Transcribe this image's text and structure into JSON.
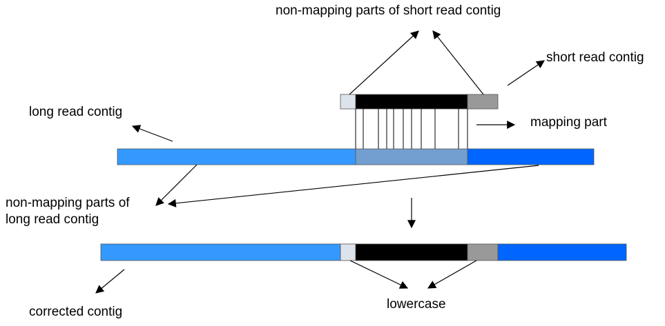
{
  "labels": {
    "non_mapping_short": "non-mapping parts of short read contig",
    "short_read_contig": "short read contig",
    "long_read_contig": "long read contig",
    "mapping_part": "mapping part",
    "non_mapping_long_line1": "non-mapping parts of",
    "non_mapping_long_line2": "long read contig",
    "corrected_contig": "corrected contig",
    "lowercase": "lowercase"
  },
  "colors": {
    "long_left": "#3399ff",
    "long_mapped": "#729fcf",
    "long_right": "#0066ff",
    "short_left": "#dde3ea",
    "short_core": "#000000",
    "short_right": "#999999",
    "arrow": "#000000"
  }
}
